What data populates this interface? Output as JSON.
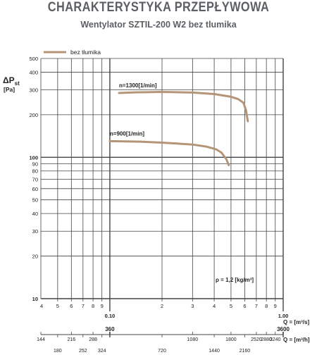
{
  "title": "CHARAKTERYSTYKA PRZEPŁYWOWA",
  "subtitle": "Wentylator SZTIL-200 W2 bez tlumika",
  "colors": {
    "curve": "#b49577",
    "grid": "#444444",
    "text": "#222222",
    "title": "#5c5f63"
  },
  "annotation": "ρ = 1,2 [kg/m³]",
  "chart_data": {
    "type": "line",
    "xscale": "log",
    "yscale": "log",
    "xlim": [
      0.04,
      1.0
    ],
    "ylim": [
      10,
      500
    ],
    "ylabel_main": "ΔP",
    "ylabel_sub": "st",
    "ylabel_unit": "[Pa]",
    "xlabel": "Q = [m³/s]",
    "xlabel2": "Q = [m³/h]",
    "legend": {
      "label": "bez tłumika",
      "position": "top-left"
    },
    "yticks": [
      {
        "v": 10,
        "label": "10",
        "bold": true
      },
      {
        "v": 20,
        "label": "20"
      },
      {
        "v": 30,
        "label": "30"
      },
      {
        "v": 40,
        "label": "40"
      },
      {
        "v": 50,
        "label": "50"
      },
      {
        "v": 60,
        "label": "60"
      },
      {
        "v": 70,
        "label": "70"
      },
      {
        "v": 80,
        "label": "80"
      },
      {
        "v": 90,
        "label": "90"
      },
      {
        "v": 100,
        "label": "100",
        "bold": true
      },
      {
        "v": 200,
        "label": "200"
      },
      {
        "v": 300,
        "label": "300"
      },
      {
        "v": 400,
        "label": "400"
      },
      {
        "v": 500,
        "label": "500"
      }
    ],
    "xticks": [
      {
        "v": 0.04,
        "label": "4"
      },
      {
        "v": 0.05,
        "label": "5"
      },
      {
        "v": 0.06,
        "label": "6"
      },
      {
        "v": 0.07,
        "label": "7"
      },
      {
        "v": 0.08,
        "label": "8"
      },
      {
        "v": 0.09,
        "label": "9"
      },
      {
        "v": 0.1,
        "label": "0.10",
        "bold": true
      },
      {
        "v": 0.2,
        "label": "2"
      },
      {
        "v": 0.3,
        "label": "3"
      },
      {
        "v": 0.4,
        "label": "4"
      },
      {
        "v": 0.5,
        "label": "5"
      },
      {
        "v": 0.6,
        "label": "6"
      },
      {
        "v": 0.7,
        "label": "7"
      },
      {
        "v": 0.8,
        "label": "8"
      },
      {
        "v": 0.9,
        "label": "9"
      },
      {
        "v": 1.0,
        "label": "1.00",
        "bold": true
      }
    ],
    "x2ticks_top": [
      {
        "v": 144,
        "label": "144"
      },
      {
        "v": 216,
        "label": "216"
      },
      {
        "v": 288,
        "label": "288"
      },
      {
        "v": 360,
        "label": "360",
        "bold": true
      },
      {
        "v": 1080,
        "label": "1080"
      },
      {
        "v": 1800,
        "label": "1800"
      },
      {
        "v": 2520,
        "label": "2520"
      },
      {
        "v": 2880,
        "label": "2880"
      },
      {
        "v": 3240,
        "label": "3240"
      },
      {
        "v": 3600,
        "label": "3600",
        "bold": true
      }
    ],
    "x2ticks_bottom": [
      {
        "v": 180,
        "label": "180"
      },
      {
        "v": 252,
        "label": "252"
      },
      {
        "v": 324,
        "label": "324"
      },
      {
        "v": 720,
        "label": "720"
      },
      {
        "v": 1440,
        "label": "1440"
      },
      {
        "v": 2160,
        "label": "2160"
      }
    ],
    "series": [
      {
        "label": "n=1300[1/min]",
        "points": [
          [
            0.113,
            285
          ],
          [
            0.14,
            288
          ],
          [
            0.2,
            290
          ],
          [
            0.3,
            287
          ],
          [
            0.4,
            280
          ],
          [
            0.5,
            268
          ],
          [
            0.55,
            258
          ],
          [
            0.59,
            243
          ],
          [
            0.61,
            215
          ],
          [
            0.625,
            180
          ]
        ]
      },
      {
        "label": "n=900[1/min]",
        "points": [
          [
            0.1,
            130
          ],
          [
            0.15,
            129
          ],
          [
            0.2,
            127
          ],
          [
            0.3,
            123
          ],
          [
            0.36,
            119
          ],
          [
            0.41,
            114
          ],
          [
            0.44,
            108
          ],
          [
            0.47,
            97
          ],
          [
            0.485,
            88
          ]
        ]
      }
    ]
  }
}
